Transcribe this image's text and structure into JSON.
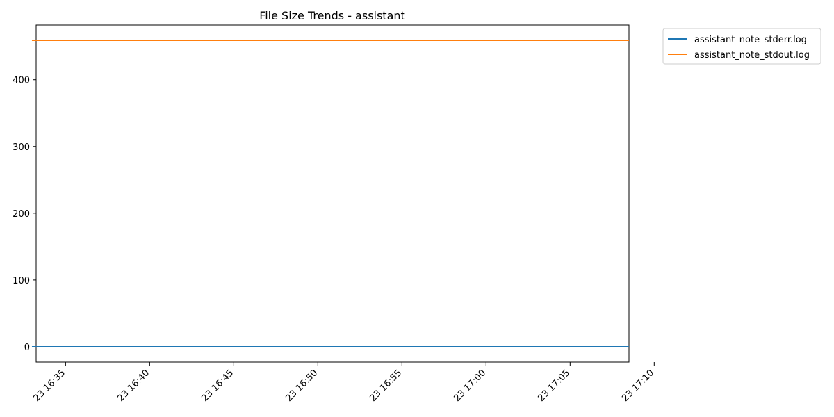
{
  "chart_data": {
    "type": "line",
    "title": "File Size Trends - assistant",
    "xlabel": "",
    "ylabel": "",
    "x_range": [
      "16:33:15",
      "17:08:30"
    ],
    "y_range": [
      -22.95,
      481.95
    ],
    "x_ticks": [
      {
        "time": "16:35",
        "label": "23 16:35"
      },
      {
        "time": "16:40",
        "label": "23 16:40"
      },
      {
        "time": "16:45",
        "label": "23 16:45"
      },
      {
        "time": "16:50",
        "label": "23 16:50"
      },
      {
        "time": "16:55",
        "label": "23 16:55"
      },
      {
        "time": "17:00",
        "label": "23 17:00"
      },
      {
        "time": "17:05",
        "label": "23 17:05"
      },
      {
        "time": "17:10",
        "label": "23 17:10"
      }
    ],
    "y_ticks": [
      0,
      100,
      200,
      300,
      400
    ],
    "grid": false,
    "legend_position": "outside upper right",
    "series": [
      {
        "name": "assistant_note_stderr.log",
        "color": "#1f77b4",
        "x": [
          "16:33",
          "17:08:30"
        ],
        "y": [
          0,
          0
        ]
      },
      {
        "name": "assistant_note_stdout.log",
        "color": "#ff7f0e",
        "x": [
          "16:33",
          "17:08:30"
        ],
        "y": [
          459,
          459
        ]
      }
    ]
  }
}
